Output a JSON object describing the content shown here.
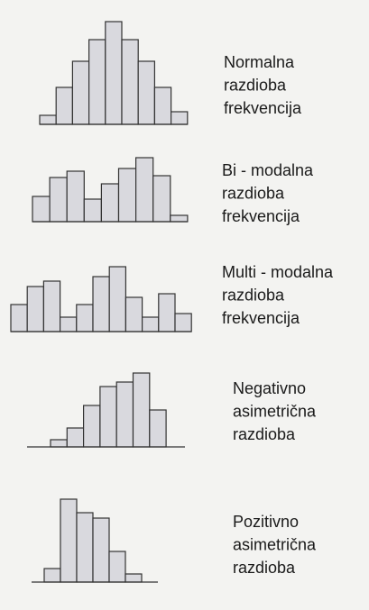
{
  "chart_data": [
    {
      "type": "bar",
      "label": [
        "Normalna",
        "razdioba",
        "frekvencija"
      ],
      "categories": [
        null,
        null,
        null,
        null,
        null,
        null,
        null,
        null,
        null
      ],
      "values": [
        10,
        41,
        70,
        94,
        114,
        94,
        70,
        41,
        14
      ],
      "ylim": [
        0,
        120
      ],
      "color": "#d9d9de"
    },
    {
      "type": "bar",
      "label": [
        "Bi - modalna",
        "razdioba",
        "frekvencija"
      ],
      "categories": [
        null,
        null,
        null,
        null,
        null,
        null,
        null,
        null,
        null
      ],
      "values": [
        28,
        49,
        56,
        25,
        42,
        59,
        71,
        51,
        7
      ],
      "ylim": [
        0,
        120
      ],
      "color": "#d9d9de"
    },
    {
      "type": "bar",
      "label": [
        "Multi - modalna",
        "razdioba",
        "frekvencija"
      ],
      "categories": [
        null,
        null,
        null,
        null,
        null,
        null,
        null,
        null,
        null,
        null,
        null
      ],
      "values": [
        30,
        50,
        56,
        16,
        30,
        61,
        72,
        38,
        16,
        42,
        20
      ],
      "ylim": [
        0,
        120
      ],
      "color": "#d9d9de"
    },
    {
      "type": "bar",
      "label": [
        "Negativno",
        "asimetrična",
        "razdioba"
      ],
      "categories": [
        null,
        null,
        null,
        null,
        null,
        null,
        null
      ],
      "values": [
        8,
        21,
        46,
        67,
        72,
        82,
        41
      ],
      "ylim": [
        0,
        120
      ],
      "color": "#d9d9de"
    },
    {
      "type": "bar",
      "label": [
        "Pozitivno",
        "asimetrična",
        "razdioba"
      ],
      "categories": [
        null,
        null,
        null,
        null,
        null,
        null
      ],
      "values": [
        15,
        92,
        77,
        71,
        34,
        9
      ],
      "ylim": [
        0,
        120
      ],
      "color": "#d9d9de"
    }
  ]
}
